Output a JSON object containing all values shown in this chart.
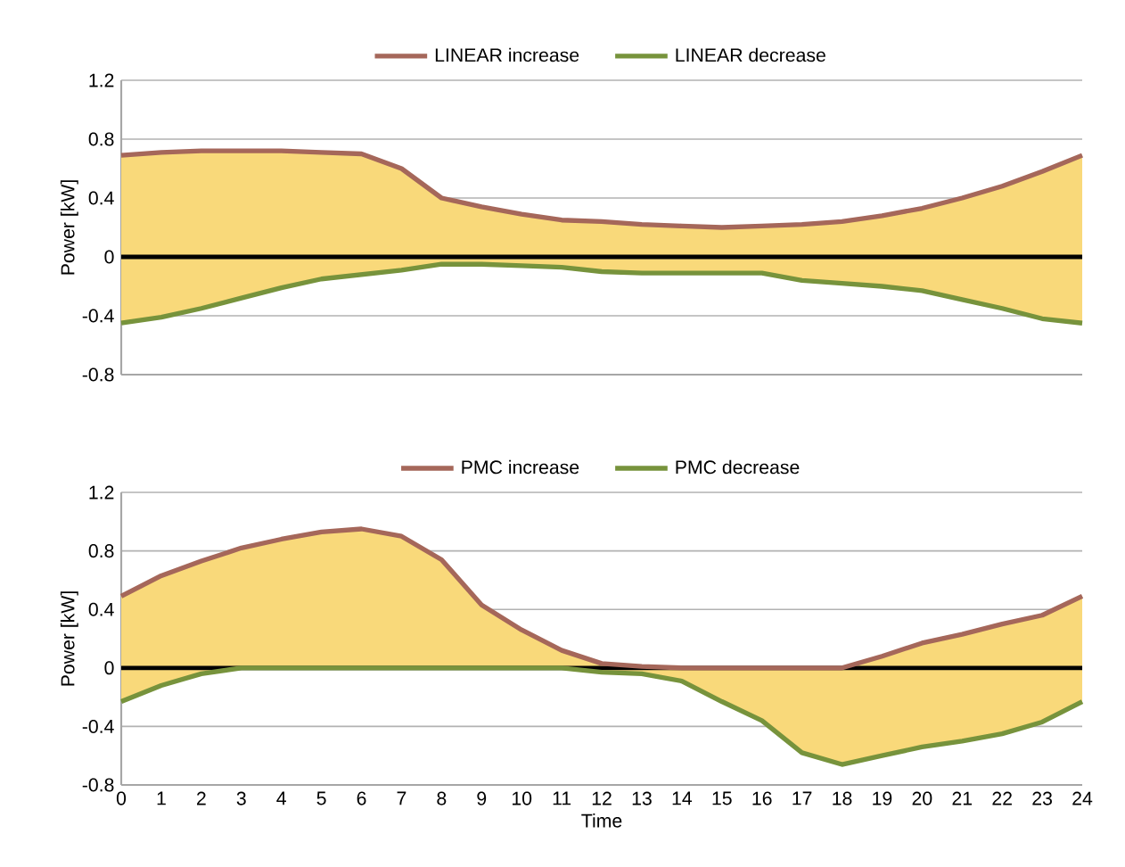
{
  "chart_data": [
    {
      "type": "area",
      "ylabel": "Power [kW]",
      "x": [
        0,
        1,
        2,
        3,
        4,
        5,
        6,
        7,
        8,
        9,
        10,
        11,
        12,
        13,
        14,
        15,
        16,
        17,
        18,
        19,
        20,
        21,
        22,
        23,
        24
      ],
      "xlim": [
        0,
        24
      ],
      "ylim": [
        -0.8,
        1.2
      ],
      "yticks": [
        -0.8,
        -0.4,
        0,
        0.4,
        0.8,
        1.2
      ],
      "grid": "y",
      "legend": "top",
      "tick_labels": "y",
      "ref_lines": [
        {
          "axis": "y",
          "value": 0,
          "color": "#000000"
        }
      ],
      "series": [
        {
          "name": "LINEAR increase",
          "color": "#a5675a",
          "values": [
            0.69,
            0.71,
            0.72,
            0.72,
            0.72,
            0.71,
            0.7,
            0.6,
            0.4,
            0.34,
            0.29,
            0.25,
            0.24,
            0.22,
            0.21,
            0.2,
            0.21,
            0.22,
            0.24,
            0.28,
            0.33,
            0.4,
            0.48,
            0.58,
            0.69
          ]
        },
        {
          "name": "LINEAR decrease",
          "color": "#77933c",
          "values": [
            -0.45,
            -0.41,
            -0.35,
            -0.28,
            -0.21,
            -0.15,
            -0.12,
            -0.09,
            -0.05,
            -0.05,
            -0.06,
            -0.07,
            -0.1,
            -0.11,
            -0.11,
            -0.11,
            -0.11,
            -0.16,
            -0.18,
            -0.2,
            -0.23,
            -0.29,
            -0.35,
            -0.42,
            -0.45
          ]
        }
      ]
    },
    {
      "type": "area",
      "xlabel": "Time",
      "ylabel": "Power [kW]",
      "x": [
        0,
        1,
        2,
        3,
        4,
        5,
        6,
        7,
        8,
        9,
        10,
        11,
        12,
        13,
        14,
        15,
        16,
        17,
        18,
        19,
        20,
        21,
        22,
        23,
        24
      ],
      "xlim": [
        0,
        24
      ],
      "xticks": [
        0,
        1,
        2,
        3,
        4,
        5,
        6,
        7,
        8,
        9,
        10,
        11,
        12,
        13,
        14,
        15,
        16,
        17,
        18,
        19,
        20,
        21,
        22,
        23,
        24
      ],
      "ylim": [
        -0.8,
        1.2
      ],
      "yticks": [
        -0.8,
        -0.4,
        0,
        0.4,
        0.8,
        1.2
      ],
      "grid": "y",
      "legend": "top",
      "ref_lines": [
        {
          "axis": "y",
          "value": 0,
          "color": "#000000"
        }
      ],
      "series": [
        {
          "name": "PMC increase",
          "color": "#a5675a",
          "values": [
            0.49,
            0.63,
            0.73,
            0.82,
            0.88,
            0.93,
            0.95,
            0.9,
            0.74,
            0.43,
            0.26,
            0.12,
            0.03,
            0.01,
            0,
            0,
            0,
            0,
            0,
            0.08,
            0.17,
            0.23,
            0.3,
            0.36,
            0.49
          ]
        },
        {
          "name": "PMC decrease",
          "color": "#77933c",
          "values": [
            -0.23,
            -0.12,
            -0.04,
            0,
            0,
            0,
            0,
            0,
            0,
            0,
            0,
            0,
            -0.03,
            -0.04,
            -0.09,
            -0.23,
            -0.36,
            -0.58,
            -0.66,
            -0.6,
            -0.54,
            -0.5,
            -0.45,
            -0.37,
            -0.23
          ]
        }
      ]
    }
  ]
}
